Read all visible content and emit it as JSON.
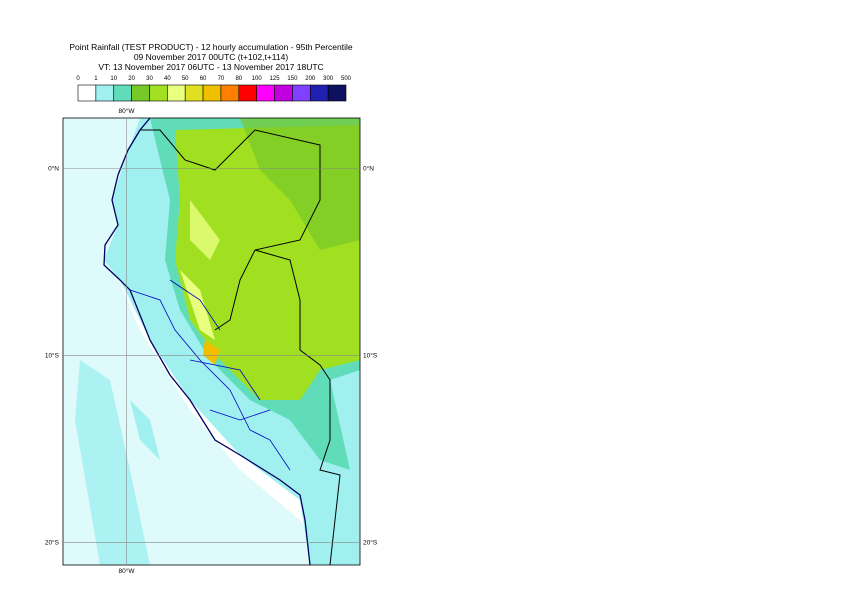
{
  "header": {
    "lines": [
      "Point Rainfall (TEST PRODUCT) - 12 hourly accumulation - 95th Percentile",
      "09 November 2017 00UTC (t+102,t+114)",
      "VT: 13 November 2017 06UTC - 13 November 2017 18UTC"
    ]
  },
  "legend": {
    "labels": [
      0,
      1,
      10,
      20,
      30,
      40,
      50,
      60,
      70,
      80,
      100,
      125,
      150,
      200,
      300,
      500
    ],
    "colors": [
      "#ffffff",
      "#a0f0f0",
      "#60dcb8",
      "#78c828",
      "#a0e020",
      "#e8ff80",
      "#e0e020",
      "#f0c000",
      "#ff8000",
      "#ff0000",
      "#ff00ff",
      "#c000e0",
      "#8040ff",
      "#2020b0",
      "#101060"
    ]
  },
  "map": {
    "xlim": [
      -83.4,
      -67.5
    ],
    "ylim": [
      -21.2,
      2.7
    ],
    "lon_ticks": [
      {
        "value": -80,
        "label": "80°W"
      }
    ],
    "lat_ticks": [
      {
        "value": 0,
        "label": "0°N"
      },
      {
        "value": -10,
        "label": "10°S"
      },
      {
        "value": -20,
        "label": "20°S"
      }
    ]
  }
}
